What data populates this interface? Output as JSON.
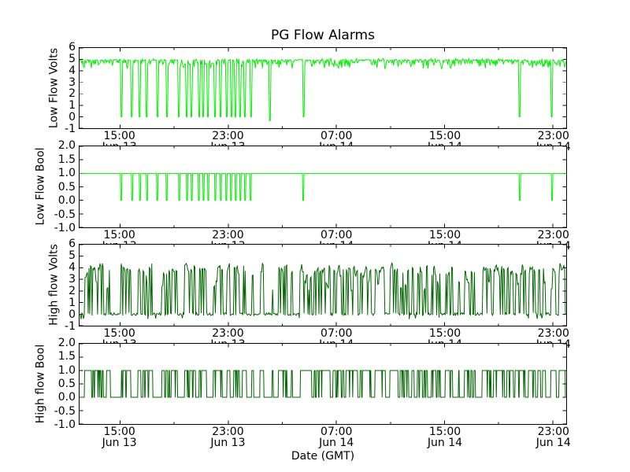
{
  "figure": {
    "title": "PG Flow Alarms",
    "xlabel": "Date (GMT)",
    "background": "#ffffff",
    "frame_color": "#000000",
    "low_flow_color": "#00ee00",
    "high_flow_color": "#006400"
  },
  "x_axis": {
    "range_hours": 36,
    "start": "Jun 13 12:00",
    "end": "Jun 14 24:00",
    "major_ticks": [
      {
        "hour": 3,
        "time": "15:00",
        "date": "Jun 13"
      },
      {
        "hour": 11,
        "time": "23:00",
        "date": "Jun 13"
      },
      {
        "hour": 19,
        "time": "07:00",
        "date": "Jun 14"
      },
      {
        "hour": 27,
        "time": "15:00",
        "date": "Jun 14"
      },
      {
        "hour": 35,
        "time": "23:00",
        "date": "Jun 14"
      }
    ],
    "minor_tick_hours": [
      7,
      15,
      23,
      31
    ]
  },
  "events": {
    "low_flow_dip_hours": [
      3.08,
      3.89,
      4.47,
      4.99,
      5.75,
      6.45,
      7.37,
      7.95,
      8.3,
      8.83,
      9.17,
      9.52,
      10.04,
      10.45,
      10.86,
      11.21,
      11.55,
      11.9,
      12.25,
      12.66,
      16.55,
      32.57,
      34.95
    ],
    "low_flow_undershoot": {
      "hour": 14.1,
      "value": -0.33
    },
    "high_flow_spike_bursts": [
      [
        0.35,
        1.8,
        10
      ],
      [
        1.97,
        2.26,
        2
      ],
      [
        3.02,
        3.83,
        6
      ],
      [
        4.35,
        4.47,
        2
      ],
      [
        4.64,
        5.46,
        5
      ],
      [
        6.04,
        6.68,
        4
      ],
      [
        6.85,
        7.2,
        3
      ],
      [
        7.72,
        8.53,
        6
      ],
      [
        8.88,
        9.41,
        4
      ],
      [
        9.87,
        10.63,
        5
      ],
      [
        10.92,
        11.09,
        2
      ],
      [
        11.44,
        11.79,
        3
      ],
      [
        12.08,
        12.31,
        2
      ],
      [
        12.77,
        12.89,
        1
      ],
      [
        13.35,
        13.59,
        2
      ],
      [
        14.23,
        14.34,
        1
      ],
      [
        14.69,
        15.39,
        5
      ],
      [
        15.68,
        15.74,
        1
      ],
      [
        16.26,
        17.13,
        7
      ],
      [
        17.3,
        17.99,
        5
      ],
      [
        18.01,
        18.58,
        4
      ],
      [
        18.81,
        19.57,
        5
      ],
      [
        19.74,
        20.61,
        7
      ],
      [
        20.79,
        21.6,
        6
      ],
      [
        21.83,
        22.59,
        7
      ],
      [
        22.94,
        23.52,
        4
      ],
      [
        23.69,
        24.33,
        4
      ],
      [
        24.62,
        24.74,
        1
      ],
      [
        24.97,
        25.72,
        5
      ],
      [
        26.02,
        26.71,
        5
      ],
      [
        27.0,
        27.58,
        4
      ],
      [
        28.04,
        28.16,
        1
      ],
      [
        28.45,
        29.03,
        4
      ],
      [
        29.2,
        29.26,
        1
      ],
      [
        29.79,
        30.48,
        6
      ],
      [
        30.66,
        31.41,
        7
      ],
      [
        31.64,
        32.05,
        3
      ],
      [
        32.22,
        32.98,
        5
      ],
      [
        33.21,
        33.67,
        4
      ],
      [
        33.91,
        34.02,
        1
      ],
      [
        34.26,
        34.49,
        2
      ],
      [
        34.84,
        35.19,
        3
      ],
      [
        35.42,
        35.88,
        5
      ]
    ]
  },
  "chart_data": [
    {
      "type": "line",
      "name": "low-flow-volts",
      "ylabel": "Low Flow Volts",
      "color": "#00ee00",
      "ylim": [
        -1,
        6
      ],
      "ytick_values": [
        6,
        5,
        4,
        3,
        2,
        1,
        0,
        -1
      ],
      "ytick_labels": [
        "6",
        "5",
        "4",
        "3",
        "2",
        "1",
        "0",
        "-1"
      ],
      "baseline": 5,
      "noise_depth_max": 0.8,
      "dip_value": 0,
      "events_ref": "low_flow_dip_hours"
    },
    {
      "type": "line",
      "name": "low-flow-bool",
      "ylabel": "Low Flow Bool",
      "color": "#00ee00",
      "ylim": [
        -1,
        2
      ],
      "ytick_values": [
        2.0,
        1.5,
        1.0,
        0.5,
        0.0,
        -0.5,
        -1.0
      ],
      "ytick_labels": [
        "2.0",
        "1.5",
        "1.0",
        "0.5",
        "0.0",
        "-0.5",
        "-1.0"
      ],
      "baseline": 1,
      "dip_value": 0,
      "events_ref": "low_flow_dip_hours"
    },
    {
      "type": "line",
      "name": "high-flow-volts",
      "ylabel": "High flow Volts",
      "color": "#006400",
      "ylim": [
        -1,
        6
      ],
      "ytick_values": [
        6,
        5,
        4,
        3,
        2,
        1,
        0,
        -1
      ],
      "ytick_labels": [
        "6",
        "5",
        "4",
        "3",
        "2",
        "1",
        "0",
        "-1"
      ],
      "baseline": 0,
      "spike_height_range": [
        3.6,
        4.5
      ],
      "events_ref": "high_flow_spike_bursts"
    },
    {
      "type": "line",
      "name": "high-flow-bool",
      "ylabel": "High flow Bool",
      "color": "#006400",
      "ylim": [
        -1,
        2
      ],
      "ytick_values": [
        2.0,
        1.5,
        1.0,
        0.5,
        0.0,
        -0.5,
        -1.0
      ],
      "ytick_labels": [
        "2.0",
        "1.5",
        "1.0",
        "0.5",
        "0.0",
        "-0.5",
        "-1.0"
      ],
      "baseline": 0,
      "spike_height": 1,
      "events_ref": "high_flow_spike_bursts"
    }
  ]
}
